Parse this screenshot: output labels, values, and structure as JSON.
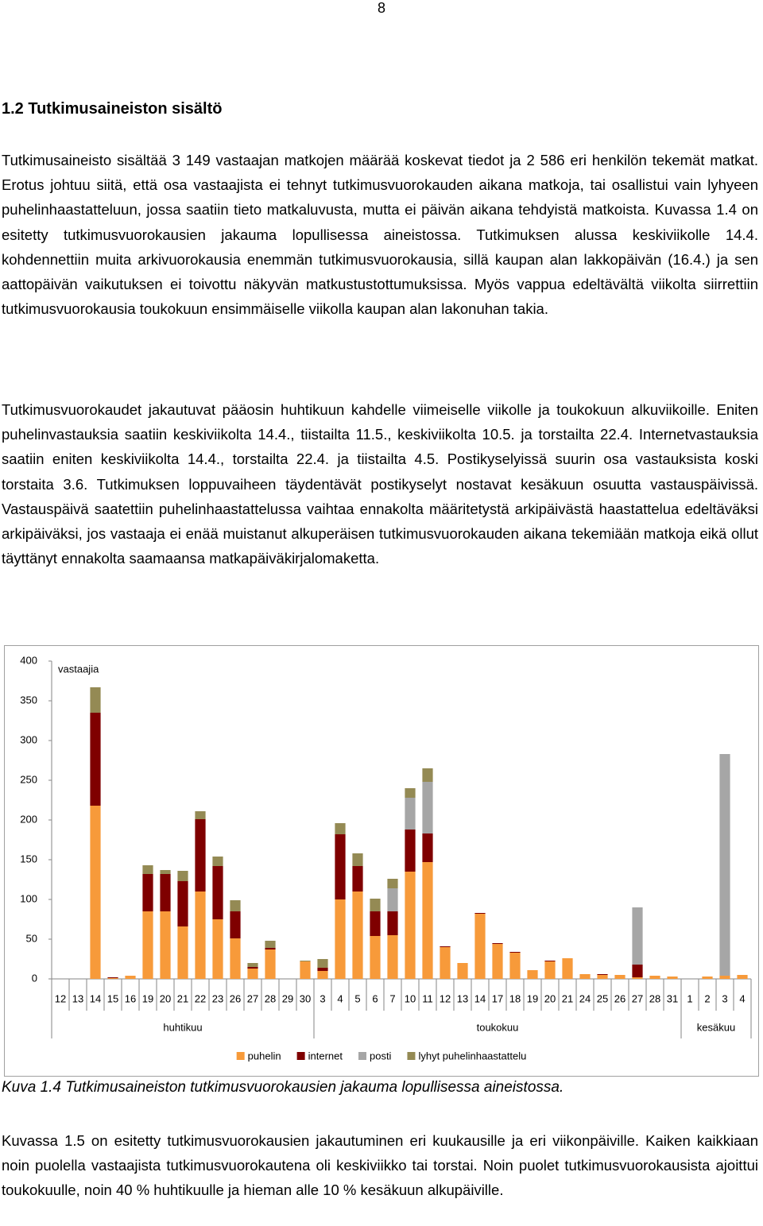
{
  "page_number": "8",
  "heading": "1.2  Tutkimusaineiston sisältö",
  "paragraphs": [
    "Tutkimusaineisto sisältää 3 149 vastaajan matkojen määrää koskevat tiedot ja 2 586 eri henkilön tekemät matkat. Erotus johtuu siitä, että osa vastaajista ei tehnyt tutkimusvuorokauden aikana matkoja, tai osallistui vain lyhyeen puhelinhaastatteluun, jossa saatiin tieto matkaluvusta, mutta ei päivän aikana tehdyistä matkoista. Kuvassa 1.4 on esitetty tutkimusvuorokausien jakauma lopullisessa aineistossa. Tutkimuksen alussa keskiviikolle 14.4. kohdennettiin muita arkivuorokausia enemmän tutkimusvuorokausia, sillä kaupan alan lakkopäivän (16.4.) ja sen aattopäivän vaikutuksen ei toivottu näkyvän matkustustottumuksissa. Myös vappua edeltävältä viikolta siirrettiin tutkimusvuorokausia toukokuun ensimmäiselle viikolla kaupan alan lakonuhan takia.",
    "Tutkimusvuorokaudet jakautuvat pääosin huhtikuun kahdelle viimeiselle viikolle ja toukokuun alkuviikoille. Eniten puhelinvastauksia saatiin keskiviikolta 14.4., tiistailta 11.5., keskiviikolta 10.5. ja torstailta 22.4. Internetvastauksia saatiin eniten keskiviikolta 14.4., torstailta 22.4. ja tiistailta 4.5. Postikyselyissä suurin osa vastauksista koski torstaita 3.6. Tutkimuksen loppuvaiheen täydentävät postikyselyt nostavat kesäkuun osuutta vastauspäivissä. Vastauspäivä saatettiin puhelinhaastattelussa vaihtaa ennakolta määritetystä arkipäivästä haastattelua edeltäväksi arkipäiväksi, jos vastaaja ei enää muistanut alkuperäisen tutkimusvuorokauden aikana tekemiään matkoja eikä ollut täyttänyt ennakolta saamaansa matkapäiväkirjalomaketta."
  ],
  "chart_data": {
    "type": "stacked_bar",
    "y_label": "vastaajia",
    "category_groups": [
      {
        "name": "huhtikuu",
        "categories": [
          "12",
          "13",
          "14",
          "15",
          "16",
          "19",
          "20",
          "21",
          "22",
          "23",
          "26",
          "27",
          "28",
          "29",
          "30"
        ]
      },
      {
        "name": "toukokuu",
        "categories": [
          "3",
          "4",
          "5",
          "6",
          "7",
          "10",
          "11",
          "12",
          "13",
          "14",
          "17",
          "18",
          "19",
          "20",
          "21",
          "24",
          "25",
          "26",
          "27",
          "28",
          "31"
        ]
      },
      {
        "name": "kesäkuu",
        "categories": [
          "1",
          "2",
          "3",
          "4"
        ]
      }
    ],
    "series": [
      {
        "name": "puhelin",
        "color": "#f79a3a",
        "values": [
          0,
          0,
          218,
          1,
          4,
          85,
          85,
          66,
          110,
          75,
          51,
          13,
          37,
          0,
          22,
          10,
          100,
          110,
          54,
          55,
          135,
          147,
          40,
          20,
          82,
          44,
          33,
          11,
          22,
          26,
          6,
          5,
          5,
          2,
          4,
          3,
          0,
          3,
          4,
          5
        ]
      },
      {
        "name": "internet",
        "color": "#7f0000",
        "values": [
          0,
          0,
          117,
          1,
          0,
          47,
          47,
          57,
          91,
          67,
          34,
          2,
          2,
          0,
          0,
          4,
          82,
          32,
          31,
          30,
          53,
          36,
          1,
          0,
          1,
          1,
          1,
          0,
          1,
          0,
          0,
          1,
          0,
          16,
          0,
          0,
          0,
          0,
          0,
          0
        ]
      },
      {
        "name": "posti",
        "color": "#a6a6a6",
        "values": [
          0,
          0,
          0,
          0,
          0,
          0,
          0,
          0,
          0,
          0,
          0,
          0,
          0,
          0,
          0,
          0,
          0,
          0,
          0,
          29,
          40,
          65,
          0,
          0,
          0,
          0,
          0,
          0,
          0,
          0,
          0,
          0,
          0,
          72,
          0,
          0,
          0,
          0,
          279,
          0
        ]
      },
      {
        "name": "lyhyt puhelinhaastattelu",
        "color": "#948a54",
        "values": [
          0,
          0,
          32,
          0,
          0,
          11,
          5,
          13,
          10,
          12,
          14,
          5,
          9,
          0,
          1,
          11,
          14,
          16,
          16,
          12,
          12,
          17,
          0,
          0,
          0,
          0,
          0,
          0,
          0,
          0,
          0,
          0,
          0,
          0,
          0,
          0,
          0,
          0,
          0,
          0
        ]
      }
    ],
    "ylim": [
      0,
      400
    ],
    "yticks": [
      0,
      50,
      100,
      150,
      200,
      250,
      300,
      350,
      400
    ],
    "grid": false,
    "legend": "bottom"
  },
  "caption": "Kuva 1.4 Tutkimusaineiston tutkimusvuorokausien jakauma lopullisessa aineistossa.",
  "closing_paragraph": "Kuvassa 1.5 on esitetty tutkimusvuorokausien jakautuminen eri kuukausille ja eri viikonpäiville. Kaiken kaikkiaan noin puolella vastaajista tutkimusvuorokautena oli keskiviikko tai torstai. Noin puolet tutkimusvuorokausista ajoittui toukokuulle, noin 40 % huhtikuulle ja hieman alle 10 % kesäkuun alkupäiville."
}
